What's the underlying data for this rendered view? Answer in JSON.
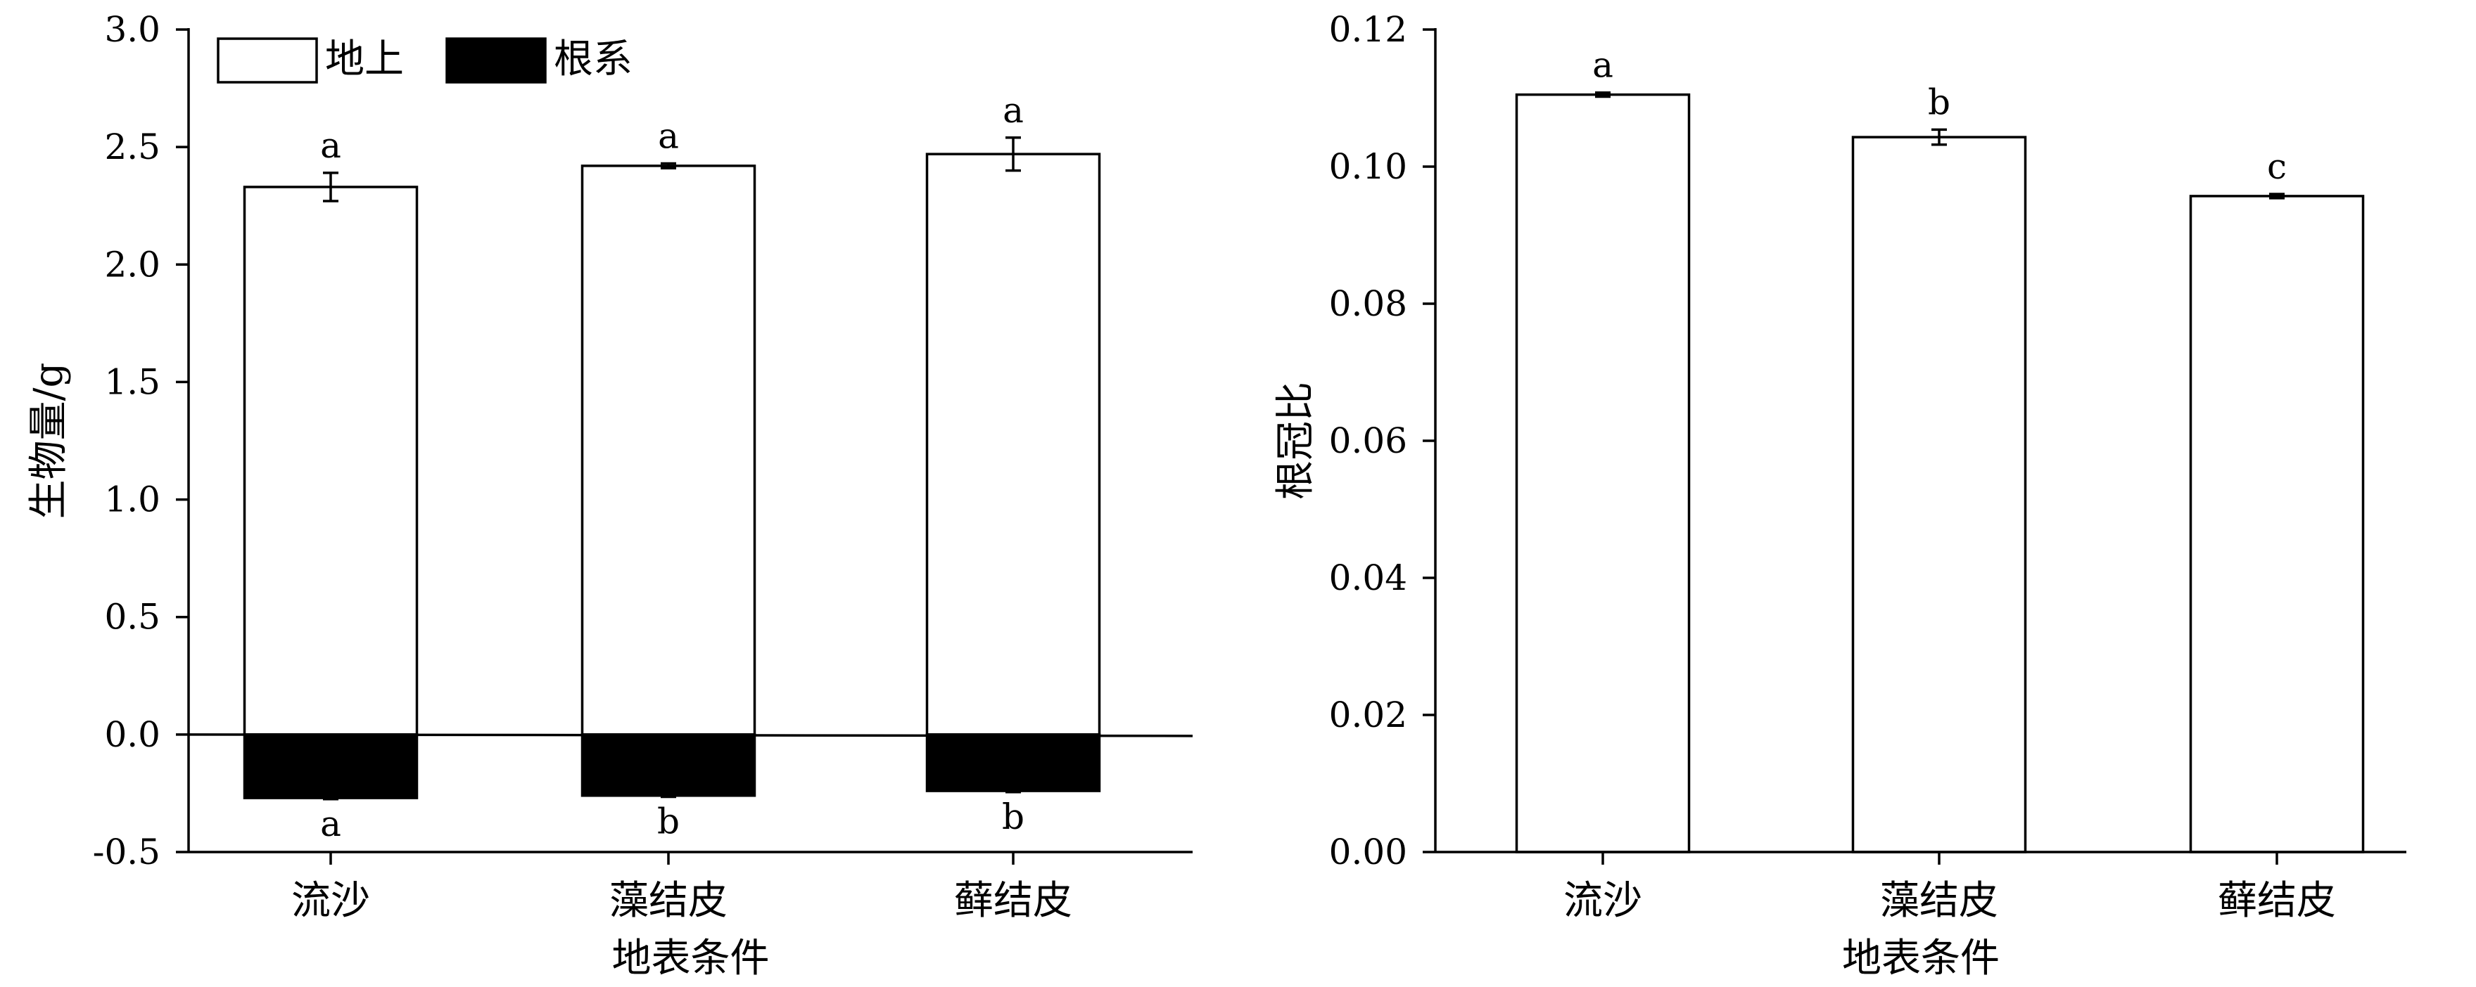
{
  "chart_data": [
    {
      "type": "bar",
      "categories": [
        "流沙",
        "藻结皮",
        "藓结皮"
      ],
      "series": [
        {
          "name": "地上",
          "color": "#ffffff",
          "values": [
            2.33,
            2.42,
            2.47
          ],
          "errors": [
            0.06,
            0.01,
            0.07
          ],
          "labels": [
            "a",
            "a",
            "a"
          ]
        },
        {
          "name": "根系",
          "color": "#000000",
          "values": [
            -0.27,
            -0.26,
            -0.24
          ],
          "errors": [
            0.005,
            0.005,
            0.005
          ],
          "labels": [
            "a",
            "b",
            "b"
          ]
        }
      ],
      "xlabel": "地表条件",
      "ylabel": "生物量/g",
      "ylim": [
        -0.5,
        3.0
      ],
      "yticks": [
        "-0.5",
        "0.0",
        "0.5",
        "1.0",
        "1.5",
        "2.0",
        "2.5",
        "3.0"
      ],
      "legend": "top-left",
      "grid": false
    },
    {
      "type": "bar",
      "categories": [
        "流沙",
        "藻结皮",
        "藓结皮"
      ],
      "series": [
        {
          "color": "#ffffff",
          "values": [
            0.1105,
            0.1043,
            0.0957
          ],
          "errors": [
            0.0003,
            0.0011,
            0.0003
          ],
          "labels": [
            "a",
            "b",
            "c"
          ]
        }
      ],
      "xlabel": "地表条件",
      "ylabel": "根冠比",
      "ylim": [
        0.0,
        0.12
      ],
      "yticks": [
        "0.00",
        "0.02",
        "0.04",
        "0.06",
        "0.08",
        "0.10",
        "0.12"
      ],
      "grid": false
    }
  ]
}
